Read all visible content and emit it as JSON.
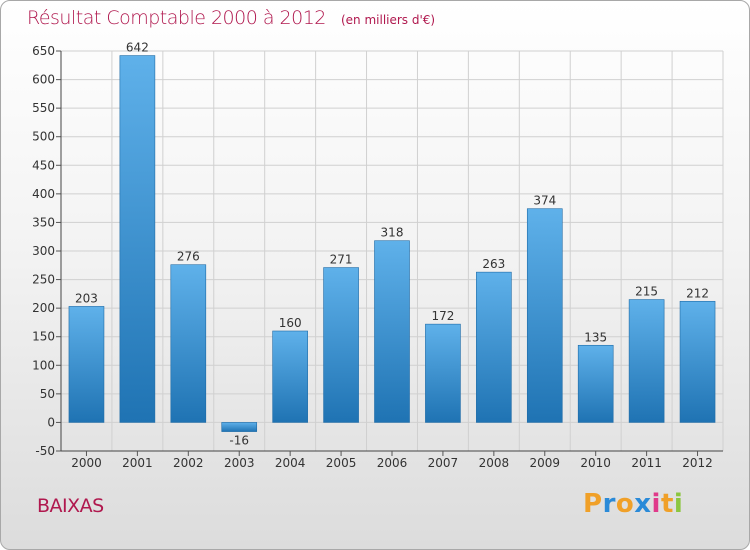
{
  "header": {
    "title": "Résultat Comptable 2000 à 2012",
    "subtitle": "(en milliers d'€)"
  },
  "footer": {
    "commune": "BAIXAS",
    "logo_text": "Proxiti"
  },
  "colors": {
    "title": "#b0184e",
    "bar_top": "#5fb1ea",
    "bar_bottom": "#1f73b3",
    "grid": "#d0d0d0",
    "axis_text": "#333333",
    "logo": [
      "#f0a028",
      "#2a8ad8",
      "#f0a028",
      "#2a8ad8",
      "#e03a8a",
      "#f0a028",
      "#8cc63f"
    ]
  },
  "chart_data": {
    "type": "bar",
    "title": "Résultat Comptable 2000 à 2012",
    "subtitle": "(en milliers d'€)",
    "categories": [
      "2000",
      "2001",
      "2002",
      "2003",
      "2004",
      "2005",
      "2006",
      "2007",
      "2008",
      "2009",
      "2010",
      "2011",
      "2012"
    ],
    "values": [
      203,
      642,
      276,
      -16,
      160,
      271,
      318,
      172,
      263,
      374,
      135,
      215,
      212
    ],
    "value_labels": [
      "203",
      "642",
      "276",
      "-16",
      "160",
      "271",
      "318",
      "172",
      "263",
      "374",
      "135",
      "215",
      "212"
    ],
    "ylim": [
      -50,
      650
    ],
    "yticks": [
      -50,
      0,
      50,
      100,
      150,
      200,
      250,
      300,
      350,
      400,
      450,
      500,
      550,
      600,
      650
    ],
    "grid": true,
    "xlabel": "",
    "ylabel": ""
  }
}
